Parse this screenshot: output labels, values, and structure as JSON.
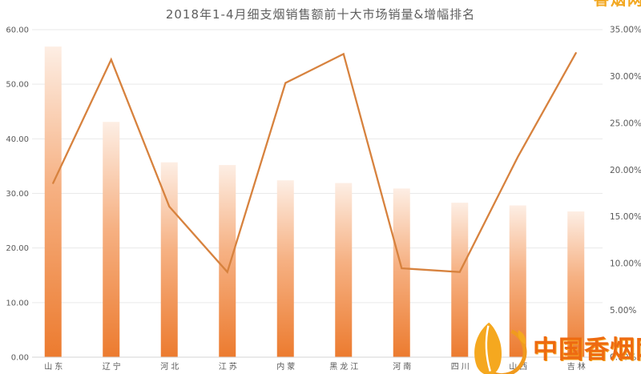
{
  "title": "2018年1-4月细支烟销售额前十大市场销量&增幅排名",
  "watermark": {
    "text": "中国香烟网",
    "corner_text": "香烟网"
  },
  "colors": {
    "bar_top": "#fdeee4",
    "bar_mid": "#f6b183",
    "bar_bottom": "#ec7b2f",
    "line": "#d7823e",
    "grid": "#e9e9e9",
    "axis": "#d6d6d6",
    "text": "#595959",
    "title_text": "#5e5e5e",
    "watermark_orange": "#ee6a10",
    "watermark_yellow": "#f5a81f"
  },
  "chart_data": {
    "type": "bar",
    "subtype": "bar-line-combo",
    "title": "2018年1-4月细支烟销售额前十大市场销量&增幅排名",
    "categories": [
      "山东",
      "辽宁",
      "河北",
      "江苏",
      "内蒙",
      "黑龙江",
      "河南",
      "四川",
      "山西",
      "吉林"
    ],
    "series": [
      {
        "name": "销量",
        "type": "bar",
        "axis": "left",
        "values": [
          56.9,
          43.1,
          35.7,
          35.2,
          32.4,
          31.9,
          30.9,
          28.3,
          27.8,
          26.7
        ]
      },
      {
        "name": "增幅",
        "type": "line",
        "axis": "right",
        "values": [
          18.6,
          31.8,
          16.1,
          9.1,
          29.3,
          32.4,
          9.5,
          9.1,
          21.4,
          32.5
        ]
      }
    ],
    "left_axis": {
      "min": 0,
      "max": 60,
      "step": 10,
      "tick_labels": [
        "0.00",
        "10.00",
        "20.00",
        "30.00",
        "40.00",
        "50.00",
        "60.00"
      ]
    },
    "right_axis": {
      "min": 0,
      "max": 35,
      "step": 5,
      "tick_labels": [
        "0.00%",
        "5.00%",
        "10.00%",
        "15.00%",
        "20.00%",
        "25.00%",
        "30.00%",
        "35.00%"
      ]
    },
    "grid": true,
    "legend": "none"
  }
}
